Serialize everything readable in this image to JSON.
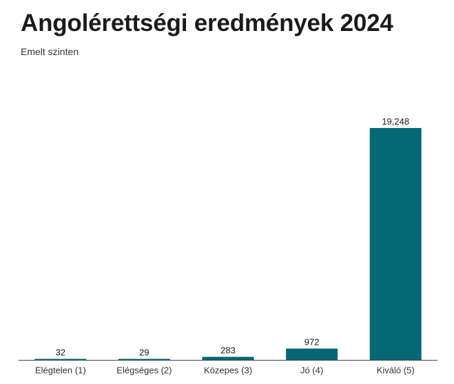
{
  "colors": {
    "bar": "#066874",
    "axis": "#444444",
    "text": "#1a1a1a",
    "tick_text": "#333333"
  },
  "chart_data": {
    "type": "bar",
    "title": "Angolérettségi eredmények 2024",
    "subtitle": "Emelt szinten",
    "xlabel": "",
    "ylabel": "",
    "categories": [
      "Elégtelen (1)",
      "Elégséges (2)",
      "Közepes (3)",
      "Jó (4)",
      "Kiváló (5)"
    ],
    "values": [
      32,
      29,
      283,
      972,
      19248
    ],
    "value_labels": [
      "32",
      "29",
      "283",
      "972",
      "19,248"
    ],
    "ylim": [
      0,
      19248
    ],
    "grid": false,
    "legend": "none"
  }
}
